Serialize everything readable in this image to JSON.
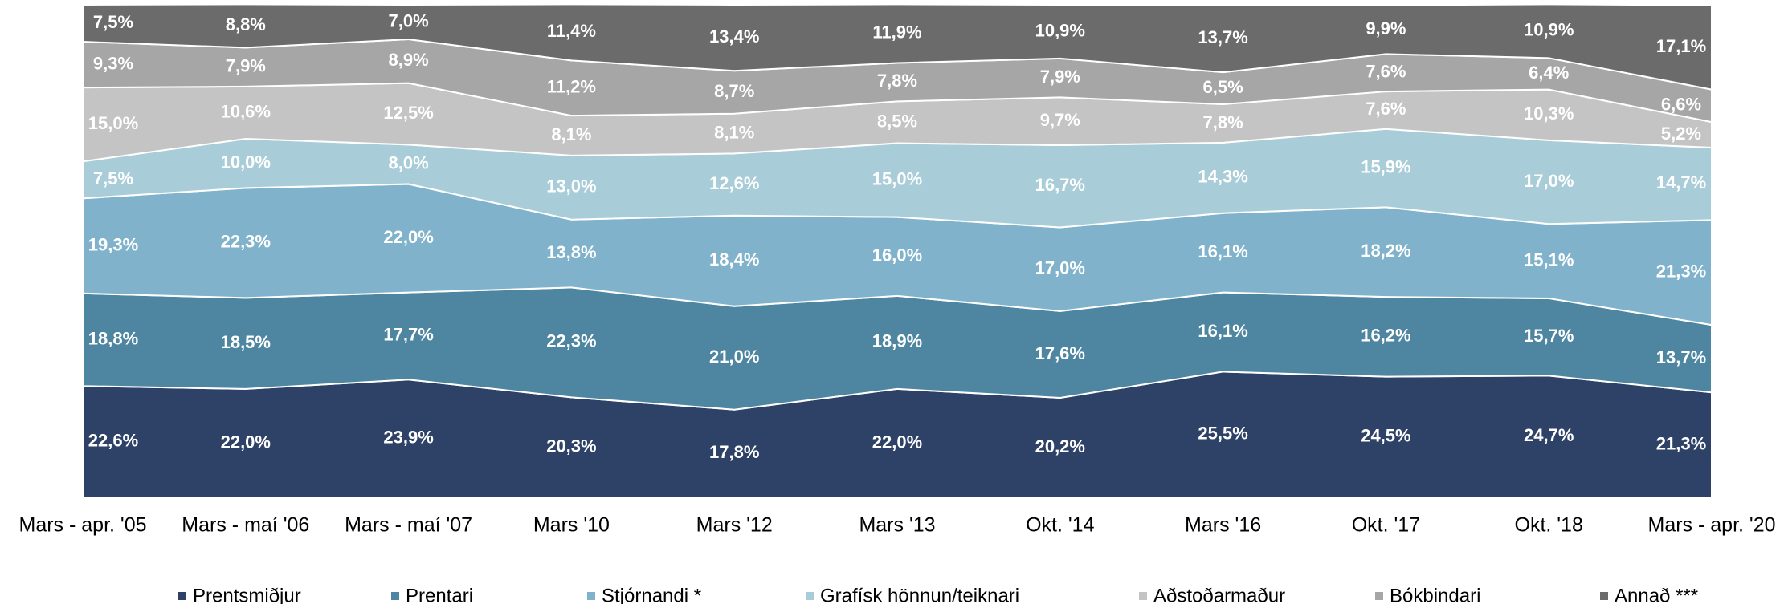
{
  "chart_data": {
    "type": "stacked_area",
    "categories": [
      "Mars - apr. '05",
      "Mars - maí '06",
      "Mars - maí '07",
      "Mars '10",
      "Mars '12",
      "Mars '13",
      "Okt. '14",
      "Mars '16",
      "Okt. '17",
      "Okt. '18",
      "Mars - apr. '20"
    ],
    "ylim": [
      0,
      100
    ],
    "series": [
      {
        "name": "Prentsmiðjur",
        "color": "#2e4166",
        "values": [
          22.6,
          22.0,
          23.9,
          20.3,
          17.8,
          22.0,
          20.2,
          25.5,
          24.5,
          24.7,
          21.3
        ],
        "value_labels": [
          "22,6%",
          "22,0%",
          "23,9%",
          "20,3%",
          "17,8%",
          "22,0%",
          "20,2%",
          "25,5%",
          "24,5%",
          "24,7%",
          "21,3%"
        ]
      },
      {
        "name": "Prentari",
        "color": "#4e86a1",
        "values": [
          18.8,
          18.5,
          17.7,
          22.3,
          21.0,
          18.9,
          17.6,
          16.1,
          16.2,
          15.7,
          13.7
        ],
        "value_labels": [
          "18,8%",
          "18,5%",
          "17,7%",
          "22,3%",
          "21,0%",
          "18,9%",
          "17,6%",
          "16,1%",
          "16,2%",
          "15,7%",
          "13,7%"
        ]
      },
      {
        "name": "Stjórnandi *",
        "color": "#80b3cb",
        "values": [
          19.3,
          22.3,
          22.0,
          13.8,
          18.4,
          16.0,
          17.0,
          16.1,
          18.2,
          15.1,
          21.3
        ],
        "value_labels": [
          "19,3%",
          "22,3%",
          "22,0%",
          "13,8%",
          "18,4%",
          "16,0%",
          "17,0%",
          "16,1%",
          "18,2%",
          "15,1%",
          "21,3%"
        ]
      },
      {
        "name": "Grafísk hönnun/teiknari",
        "color": "#a9cdd8",
        "values": [
          7.5,
          10.0,
          8.0,
          13.0,
          12.6,
          15.0,
          16.7,
          14.3,
          15.9,
          17.0,
          14.7
        ],
        "value_labels": [
          "7,5%",
          "10,0%",
          "8,0%",
          "13,0%",
          "12,6%",
          "15,0%",
          "16,7%",
          "14,3%",
          "15,9%",
          "17,0%",
          "14,7%"
        ]
      },
      {
        "name": "Aðstoðarmaður",
        "color": "#c4c4c4",
        "values": [
          15.0,
          10.6,
          12.5,
          8.1,
          8.1,
          8.5,
          9.7,
          7.8,
          7.6,
          10.3,
          5.2
        ],
        "value_labels": [
          "15,0%",
          "10,6%",
          "12,5%",
          "8,1%",
          "8,1%",
          "8,5%",
          "9,7%",
          "7,8%",
          "7,6%",
          "10,3%",
          "5,2%"
        ]
      },
      {
        "name": "Bókbindari",
        "color": "#a6a6a6",
        "values": [
          9.3,
          7.9,
          8.9,
          11.2,
          8.7,
          7.8,
          7.9,
          6.5,
          7.6,
          6.4,
          6.6
        ],
        "value_labels": [
          "9,3%",
          "7,9%",
          "8,9%",
          "11,2%",
          "8,7%",
          "7,8%",
          "7,9%",
          "6,5%",
          "7,6%",
          "6,4%",
          "6,6%"
        ]
      },
      {
        "name": "Annað ***",
        "color": "#6b6b6b",
        "values": [
          7.5,
          8.8,
          7.0,
          11.4,
          13.4,
          11.9,
          10.9,
          13.7,
          9.9,
          10.9,
          17.1
        ],
        "value_labels": [
          "7,5%",
          "8,8%",
          "7,0%",
          "11,4%",
          "13,4%",
          "11,9%",
          "10,9%",
          "13,7%",
          "9,9%",
          "10,9%",
          "17,1%"
        ]
      }
    ]
  }
}
